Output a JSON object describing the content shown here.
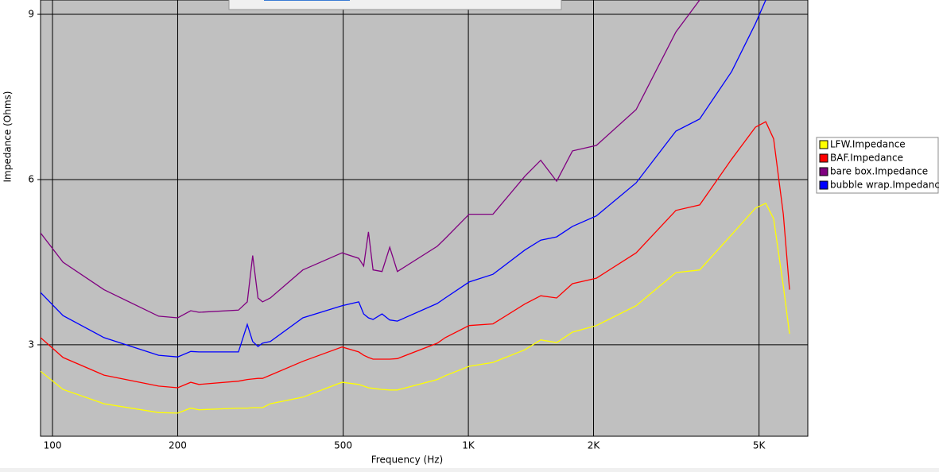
{
  "chart_data": {
    "type": "line",
    "xlabel": "Frequency (Hz)",
    "ylabel": "Impedance (Ohms)",
    "xscale": "log",
    "grid": true,
    "legend": "right",
    "xlim": [
      93.6,
      6550
    ],
    "ylim": [
      1.34,
      9.26
    ],
    "xticks": [
      100,
      200,
      500,
      {
        "value": 1000,
        "label": "1K"
      },
      {
        "value": 2000,
        "label": "2K"
      },
      {
        "value": 5000,
        "label": "5K"
      }
    ],
    "yticks": [
      3,
      6,
      9
    ],
    "x": [
      93.6,
      106,
      133,
      180,
      200,
      215,
      225,
      280,
      294,
      303,
      312,
      320,
      334,
      400,
      497,
      545,
      560,
      575,
      590,
      620,
      647,
      675,
      842,
      880,
      1004,
      1146,
      1367,
      1493,
      1630,
      1780,
      2032,
      2532,
      3155,
      3600,
      4296,
      4900,
      5190,
      5420,
      5720,
      5920
    ],
    "series": [
      {
        "name": "LFW.Impedance",
        "color": "#ffff00",
        "values": [
          2.52,
          2.19,
          1.93,
          1.77,
          1.76,
          1.85,
          1.82,
          1.85,
          1.85,
          1.86,
          1.86,
          1.86,
          1.93,
          2.05,
          2.32,
          2.28,
          2.25,
          2.22,
          2.21,
          2.19,
          2.18,
          2.18,
          2.37,
          2.44,
          2.61,
          2.68,
          2.91,
          3.09,
          3.04,
          3.23,
          3.35,
          3.71,
          4.31,
          4.36,
          5.0,
          5.48,
          5.57,
          5.29,
          4.07,
          3.2
        ]
      },
      {
        "name": "BAF.Impedance",
        "color": "#ff0000",
        "values": [
          3.13,
          2.77,
          2.45,
          2.25,
          2.22,
          2.32,
          2.28,
          2.34,
          2.37,
          2.38,
          2.39,
          2.39,
          2.45,
          2.7,
          2.96,
          2.87,
          2.81,
          2.77,
          2.74,
          2.74,
          2.74,
          2.75,
          3.03,
          3.13,
          3.35,
          3.38,
          3.74,
          3.89,
          3.85,
          4.11,
          4.21,
          4.67,
          5.44,
          5.54,
          6.37,
          6.95,
          7.05,
          6.74,
          5.37,
          4.0
        ]
      },
      {
        "name": "bare box.Impedance",
        "color": "#800080",
        "values": [
          5.03,
          4.5,
          4.0,
          3.52,
          3.49,
          3.62,
          3.59,
          3.63,
          3.78,
          4.62,
          3.85,
          3.78,
          3.85,
          4.36,
          4.67,
          4.57,
          4.43,
          5.05,
          4.36,
          4.33,
          4.77,
          4.33,
          4.79,
          4.93,
          5.37,
          5.37,
          6.06,
          6.35,
          5.97,
          6.52,
          6.62,
          7.27,
          8.68,
          9.26,
          null,
          null,
          null,
          null,
          null,
          null
        ]
      },
      {
        "name": "bubble wrap.Impedance",
        "color": "#0000ff",
        "values": [
          3.95,
          3.53,
          3.13,
          2.81,
          2.78,
          2.88,
          2.87,
          2.87,
          3.37,
          3.06,
          2.97,
          3.03,
          3.06,
          3.49,
          3.71,
          3.78,
          3.56,
          3.49,
          3.46,
          3.56,
          3.45,
          3.43,
          3.75,
          3.85,
          4.14,
          4.28,
          4.72,
          4.9,
          4.96,
          5.15,
          5.34,
          5.94,
          6.88,
          7.1,
          7.96,
          8.83,
          9.26,
          null,
          null,
          null
        ]
      }
    ]
  }
}
